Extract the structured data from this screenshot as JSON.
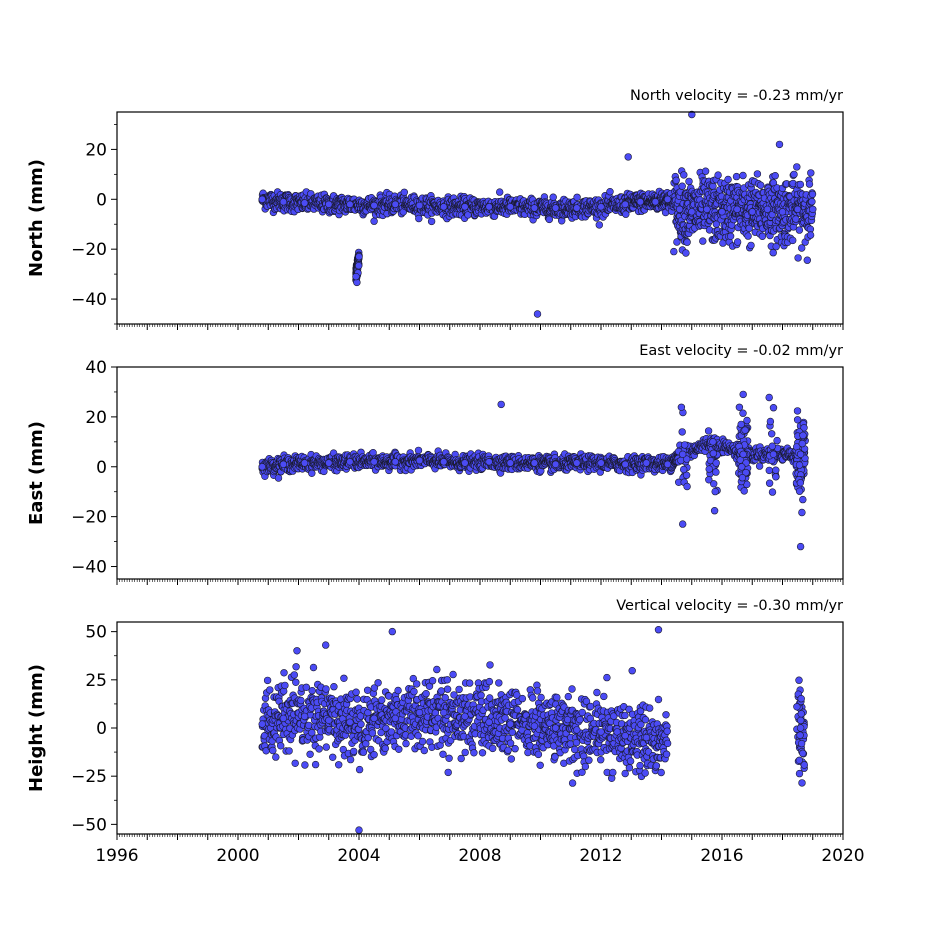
{
  "chart_data": [
    {
      "type": "scatter",
      "title": "North velocity = -0.23 mm/yr",
      "xlabel": "",
      "ylabel": "North (mm)",
      "xlim": [
        1996,
        2020
      ],
      "ylim": [
        -50,
        35
      ],
      "yticks": [
        20,
        0,
        -20,
        -40
      ],
      "ytick_labels": [
        "20",
        "0",
        "−20",
        "−40"
      ],
      "marker_color": "#4b4bf5",
      "edge_color": "#1a1a2e",
      "series": [
        {
          "x": [
            2000.8,
            2001.5,
            2002.2,
            2003.0,
            2003.7,
            2004.5,
            2005.2,
            2006.0,
            2006.8,
            2007.5,
            2008.3,
            2009.0,
            2009.8,
            2010.5,
            2011.2,
            2012.0,
            2012.8,
            2013.3,
            2013.8,
            2014.2,
            2014.6,
            2015.0,
            2015.5,
            2016.0,
            2016.5,
            2017.0,
            2017.5,
            2018.0,
            2018.5,
            2019.0,
            2003.9,
            2004.0,
            2009.9,
            2012.9,
            2015.0,
            2017.9
          ],
          "y": [
            0,
            -1,
            -1.5,
            -2,
            -2,
            -2.5,
            -2,
            -2.5,
            -3,
            -3,
            -3,
            -3,
            -3.5,
            -3.5,
            -3.5,
            -3,
            -2,
            -1,
            -1,
            0,
            -4,
            -5,
            -4,
            -5,
            -4,
            -5,
            -4,
            -5,
            -4,
            -4,
            -31,
            -23,
            -46,
            17,
            34,
            22
          ]
        }
      ]
    },
    {
      "type": "scatter",
      "title": "East velocity = -0.02 mm/yr",
      "xlabel": "",
      "ylabel": "East (mm)",
      "xlim": [
        1996,
        2020
      ],
      "ylim": [
        -45,
        40
      ],
      "yticks": [
        40,
        20,
        0,
        -20,
        -40
      ],
      "ytick_labels": [
        "40",
        "20",
        "0",
        "−20",
        "−40"
      ],
      "marker_color": "#4b4bf5",
      "edge_color": "#1a1a2e",
      "series": [
        {
          "x": [
            2000.8,
            2001.5,
            2002.2,
            2003.0,
            2003.7,
            2004.5,
            2005.2,
            2006.0,
            2006.8,
            2007.5,
            2008.3,
            2009.0,
            2009.8,
            2010.5,
            2011.2,
            2012.0,
            2012.8,
            2013.5,
            2014.2,
            2014.7,
            2015.7,
            2016.7,
            2017.7,
            2018.6,
            2008.7,
            2014.7,
            2016.7,
            2018.6
          ],
          "y": [
            0,
            1,
            1.5,
            1.5,
            2,
            2,
            2,
            2.5,
            2,
            1.5,
            2,
            1.5,
            1.5,
            1,
            1.5,
            1.5,
            1,
            1.5,
            1,
            5,
            10,
            5,
            5,
            5,
            25,
            -23,
            29,
            -32
          ]
        }
      ]
    },
    {
      "type": "scatter",
      "title": "Vertical velocity = -0.30 mm/yr",
      "xlabel": "",
      "ylabel": "Height (mm)",
      "xlim": [
        1996,
        2020
      ],
      "ylim": [
        -55,
        55
      ],
      "yticks": [
        50,
        25,
        0,
        -25,
        -50
      ],
      "ytick_labels": [
        "50",
        "25",
        "0",
        "−25",
        "−50"
      ],
      "xticks": [
        1996,
        2000,
        2004,
        2008,
        2012,
        2016,
        2020
      ],
      "xtick_labels": [
        "1996",
        "2000",
        "2004",
        "2008",
        "2012",
        "2016",
        "2020"
      ],
      "marker_color": "#4b4bf5",
      "edge_color": "#1a1a2e",
      "series": [
        {
          "x": [
            2000.8,
            2001.5,
            2002.2,
            2003.0,
            2003.7,
            2004.5,
            2005.2,
            2006.0,
            2006.8,
            2007.5,
            2008.3,
            2009.0,
            2009.8,
            2010.5,
            2011.2,
            2012.0,
            2012.8,
            2013.5,
            2014.2,
            2018.6,
            2004.0,
            2013.9,
            2005.1,
            2002.9
          ],
          "y": [
            2,
            5,
            6,
            4,
            3,
            5,
            5,
            8,
            8,
            6,
            3,
            2,
            1,
            0,
            -1,
            -2,
            -4,
            -5,
            -8,
            0,
            -53,
            51,
            50,
            43
          ]
        }
      ]
    }
  ]
}
